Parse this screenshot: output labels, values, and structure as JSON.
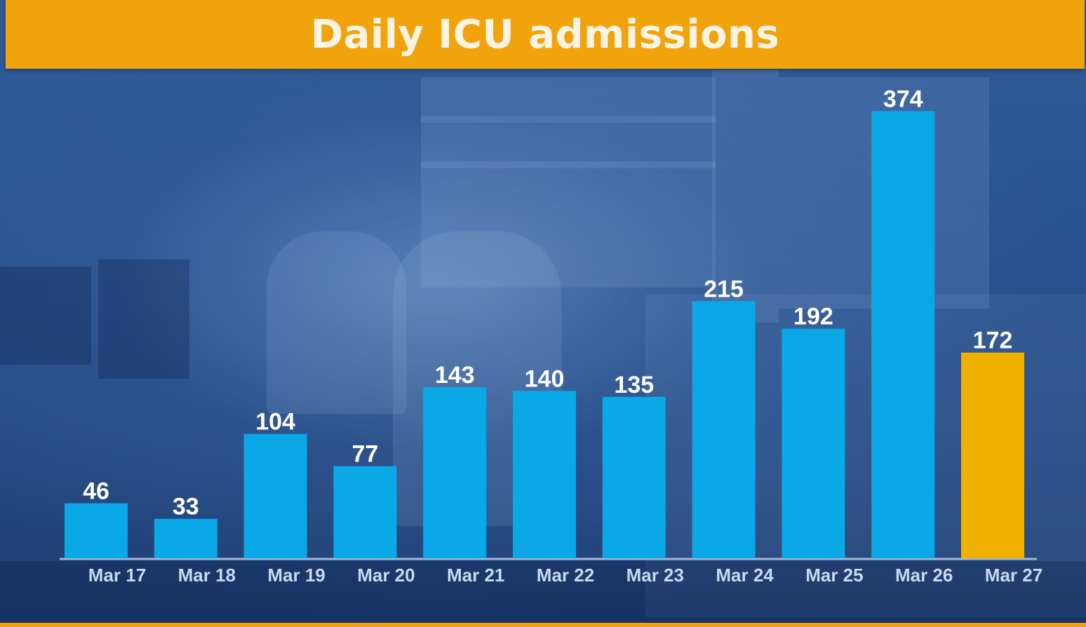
{
  "title": "Daily ICU admissions",
  "colors": {
    "title_bar": "#f0a30a",
    "title_text": "#fbf4e4",
    "bar": "#0aa8e6",
    "bar_highlight": "#f0b000",
    "axis": "#9fb6d8"
  },
  "chart_data": {
    "type": "bar",
    "title": "Daily ICU admissions",
    "xlabel": "",
    "ylabel": "",
    "categories": [
      "Mar 17",
      "Mar 18",
      "Mar 19",
      "Mar 20",
      "Mar 21",
      "Mar 22",
      "Mar 23",
      "Mar 24",
      "Mar 25",
      "Mar 26",
      "Mar 27"
    ],
    "values": [
      46,
      33,
      104,
      77,
      143,
      140,
      135,
      215,
      192,
      374,
      172
    ],
    "highlighted_category": "Mar 27",
    "data_labels": true,
    "grid": false,
    "legend": "none"
  }
}
